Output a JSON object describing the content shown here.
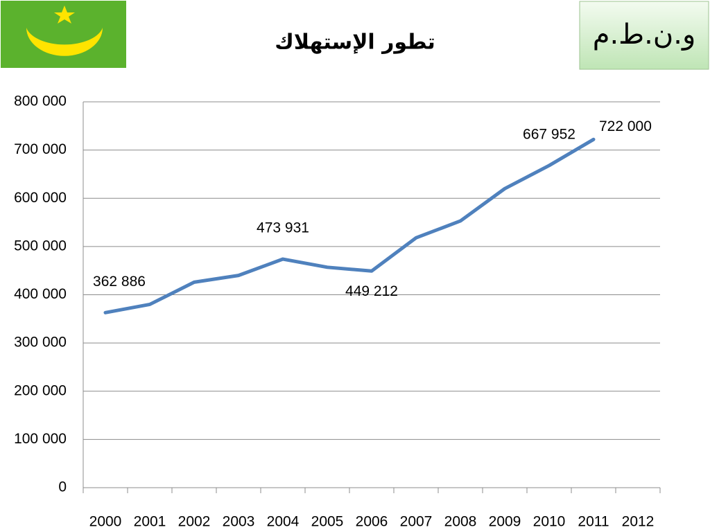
{
  "badge": "و.ن.ط.م",
  "chart_data": {
    "type": "line",
    "title": "تطور الإستهلاك",
    "categories": [
      "2000",
      "2001",
      "2002",
      "2003",
      "2004",
      "2005",
      "2006",
      "2007",
      "2008",
      "2009",
      "2010",
      "2011",
      "2012"
    ],
    "values": [
      362886,
      380000,
      426000,
      440000,
      473931,
      457000,
      449212,
      518000,
      553000,
      620000,
      667952,
      722000,
      null
    ],
    "value_labels": [
      "362 886",
      null,
      null,
      null,
      "473 931",
      null,
      "449 212",
      null,
      null,
      null,
      "667 952",
      "722 000",
      null
    ],
    "color": "#4f81bd",
    "ylim": [
      0,
      800000
    ],
    "yticks": [
      0,
      {
        "value": 100000,
        "label": "100 000"
      },
      {
        "value": 200000,
        "label": "200 000"
      },
      {
        "value": 300000,
        "label": "300 000"
      },
      {
        "value": 400000,
        "label": "400 000"
      },
      {
        "value": 500000,
        "label": "500 000"
      },
      {
        "value": 600000,
        "label": "600 000"
      },
      {
        "value": 700000,
        "label": "700 000"
      },
      {
        "value": 800000,
        "label": "800 000"
      }
    ],
    "grid": true
  }
}
